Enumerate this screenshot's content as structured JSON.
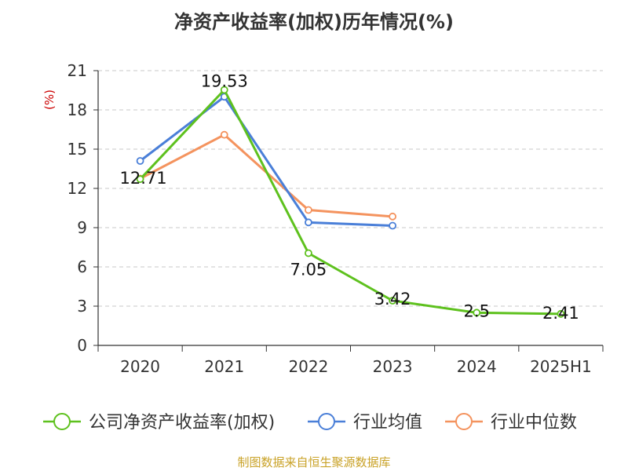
{
  "chart_data": {
    "type": "line",
    "title": "净资产收益率(加权)历年情况(%)",
    "ylabel": "(%)",
    "ylim": [
      0,
      21
    ],
    "yticks": [
      0,
      3,
      6,
      9,
      12,
      15,
      18,
      21
    ],
    "grid": true,
    "legend_position": "bottom",
    "categories": [
      "2020",
      "2021",
      "2022",
      "2023",
      "2024",
      "2025H1"
    ],
    "series": [
      {
        "name": "公司净资产收益率(加权)",
        "color": "#5ec11e",
        "values": [
          12.71,
          19.53,
          7.05,
          3.42,
          2.5,
          2.41
        ],
        "labels": [
          "12.71",
          "19.53",
          "7.05",
          "3.42",
          "2.5",
          "2.41"
        ]
      },
      {
        "name": "行业均值",
        "color": "#4a7fd8",
        "values": [
          14.1,
          19.0,
          9.4,
          9.15,
          null,
          null
        ]
      },
      {
        "name": "行业中位数",
        "color": "#f4935e",
        "values": [
          12.75,
          16.1,
          10.35,
          9.85,
          null,
          null
        ]
      }
    ]
  },
  "footer": {
    "source": "制图数据来自恒生聚源数据库"
  }
}
